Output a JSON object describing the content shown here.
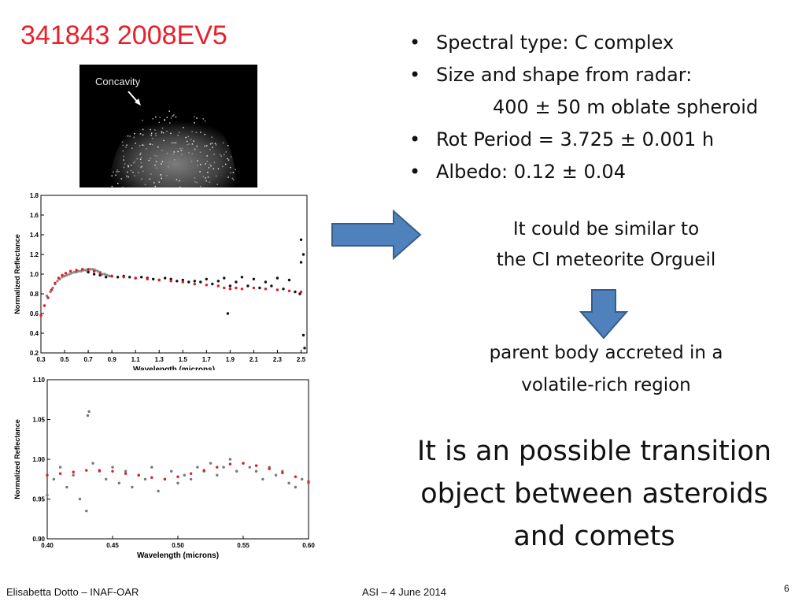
{
  "slide": {
    "title": "341843 2008EV5",
    "radar_label": "Concavity",
    "bullets": [
      "Spectral type:  C complex",
      "Size and shape from radar:",
      "Rot Period = 3.725 ± 0.001 h",
      "Albedo: 0.12 ± 0.04"
    ],
    "bullet_indent": "400 ± 50 m oblate spheroid",
    "similar_line1": "It could be similar to",
    "similar_line2": "the CI meteorite Orgueil",
    "parent_line1": "parent body accreted in a",
    "parent_line2": "volatile-rich region",
    "transition_line1": "It is an possible transition",
    "transition_line2": "object between asteroids",
    "transition_line3": "and comets",
    "footer_left": "Elisabetta Dotto – INAF-OAR",
    "footer_mid": "ASI – 4 June 2014",
    "page_number": "6",
    "colors": {
      "title": "#e8202a",
      "arrow_fill": "#4f81bd",
      "arrow_stroke": "#385d8a",
      "model_line": "#e31a1c"
    }
  },
  "chart_data": [
    {
      "type": "scatter",
      "xlabel": "Wavelength (microns)",
      "ylabel": "Normalized Reflectance",
      "xlim": [
        0.3,
        2.55
      ],
      "ylim": [
        0.2,
        1.8
      ],
      "xticks": [
        "0.3",
        "0.5",
        "0.7",
        "0.9",
        "1.1",
        "1.3",
        "1.5",
        "1.7",
        "1.9",
        "2.1",
        "2.3",
        "2.5"
      ],
      "yticks": [
        "0.2",
        "0.4",
        "0.6",
        "0.8",
        "1.0",
        "1.2",
        "1.4",
        "1.6",
        "1.8"
      ],
      "series": [
        {
          "color": "#888888",
          "x": [
            0.35,
            0.38,
            0.4,
            0.42,
            0.44,
            0.46,
            0.48,
            0.5,
            0.52,
            0.54,
            0.56,
            0.58,
            0.6,
            0.62,
            0.64,
            0.66,
            0.68,
            0.7,
            0.72,
            0.74,
            0.76,
            0.78,
            0.8,
            0.82,
            0.84,
            0.86,
            0.88,
            0.9
          ],
          "y": [
            0.78,
            0.82,
            0.86,
            0.9,
            0.93,
            0.95,
            0.97,
            0.98,
            0.99,
            1.0,
            1.01,
            1.02,
            1.02,
            1.03,
            1.03,
            1.04,
            1.04,
            1.04,
            1.05,
            1.05,
            1.04,
            1.03,
            1.02,
            1.0,
            1.0,
            0.99,
            0.98,
            0.98
          ]
        },
        {
          "color": "#111111",
          "x": [
            0.7,
            0.75,
            0.8,
            0.85,
            0.9,
            0.95,
            1.0,
            1.05,
            1.1,
            1.15,
            1.2,
            1.25,
            1.3,
            1.35,
            1.4,
            1.45,
            1.5,
            1.55,
            1.6,
            1.65,
            1.7,
            1.75,
            1.8,
            1.85,
            1.9,
            1.95,
            2.0,
            2.05,
            2.1,
            2.15,
            2.2,
            2.25,
            2.3,
            2.35,
            2.4,
            2.45,
            2.5,
            2.5,
            2.52,
            2.53,
            1.88,
            2.52,
            2.49
          ],
          "y": [
            1.02,
            1.0,
            0.99,
            0.97,
            0.98,
            0.97,
            0.98,
            0.97,
            0.96,
            0.97,
            0.96,
            0.95,
            0.94,
            0.96,
            0.95,
            0.93,
            0.94,
            0.92,
            0.93,
            0.92,
            0.95,
            0.9,
            0.93,
            0.96,
            0.88,
            0.92,
            0.97,
            0.88,
            0.95,
            0.86,
            0.92,
            0.88,
            0.96,
            0.85,
            0.94,
            0.82,
            1.12,
            1.35,
            0.38,
            0.25,
            0.6,
            1.2,
            0.8
          ]
        },
        {
          "color": "#e31a1c",
          "x": [
            0.3,
            0.33,
            0.36,
            0.39,
            0.42,
            0.45,
            0.48,
            0.51,
            0.55,
            0.6,
            0.65,
            0.7,
            0.75,
            0.8,
            0.9,
            1.0,
            1.1,
            1.2,
            1.3,
            1.4,
            1.5,
            1.6,
            1.7,
            1.8,
            1.85,
            1.9,
            1.95,
            2.0,
            2.1,
            2.2,
            2.3,
            2.4,
            2.5
          ],
          "y": [
            0.58,
            0.68,
            0.76,
            0.84,
            0.91,
            0.96,
            0.99,
            1.01,
            1.03,
            1.04,
            1.05,
            1.05,
            1.03,
            1.01,
            0.98,
            0.97,
            0.96,
            0.95,
            0.94,
            0.93,
            0.92,
            0.9,
            0.89,
            0.88,
            0.86,
            0.85,
            0.86,
            0.85,
            0.86,
            0.85,
            0.84,
            0.83,
            0.82
          ]
        }
      ]
    },
    {
      "type": "scatter",
      "xlabel": "Wavelength (microns)",
      "ylabel": "Normalized Reflectance",
      "xlim": [
        0.4,
        0.6
      ],
      "ylim": [
        0.9,
        1.1
      ],
      "xticks": [
        "0.40",
        "0.45",
        "0.50",
        "0.55",
        "0.60"
      ],
      "yticks": [
        "0.90",
        "0.95",
        "1.00",
        "1.05",
        "1.10"
      ],
      "series": [
        {
          "color": "#777777",
          "x": [
            0.4,
            0.405,
            0.41,
            0.415,
            0.42,
            0.425,
            0.43,
            0.431,
            0.432,
            0.435,
            0.44,
            0.445,
            0.45,
            0.455,
            0.46,
            0.465,
            0.47,
            0.475,
            0.48,
            0.485,
            0.49,
            0.495,
            0.5,
            0.505,
            0.51,
            0.515,
            0.52,
            0.525,
            0.53,
            0.535,
            0.54,
            0.545,
            0.55,
            0.555,
            0.56,
            0.565,
            0.57,
            0.575,
            0.58,
            0.585,
            0.59,
            0.595,
            0.6
          ],
          "y": [
            0.955,
            0.975,
            0.99,
            0.965,
            0.98,
            0.95,
            0.935,
            1.055,
            1.06,
            0.995,
            0.985,
            0.975,
            0.99,
            0.97,
            0.985,
            0.965,
            0.98,
            0.975,
            0.99,
            0.96,
            0.975,
            0.985,
            0.97,
            0.98,
            0.975,
            0.99,
            0.985,
            0.995,
            0.98,
            0.99,
            1.0,
            0.985,
            0.995,
            0.99,
            0.985,
            0.975,
            0.99,
            0.98,
            0.985,
            0.97,
            0.965,
            0.975,
            0.97
          ]
        },
        {
          "color": "#e31a1c",
          "x": [
            0.4,
            0.41,
            0.42,
            0.43,
            0.44,
            0.45,
            0.46,
            0.47,
            0.48,
            0.49,
            0.5,
            0.51,
            0.52,
            0.53,
            0.54,
            0.55,
            0.56,
            0.57,
            0.58,
            0.59,
            0.6
          ],
          "y": [
            0.98,
            0.982,
            0.984,
            0.986,
            0.986,
            0.985,
            0.982,
            0.98,
            0.977,
            0.975,
            0.978,
            0.982,
            0.986,
            0.99,
            0.994,
            0.995,
            0.992,
            0.988,
            0.983,
            0.978,
            0.972
          ]
        }
      ]
    }
  ]
}
